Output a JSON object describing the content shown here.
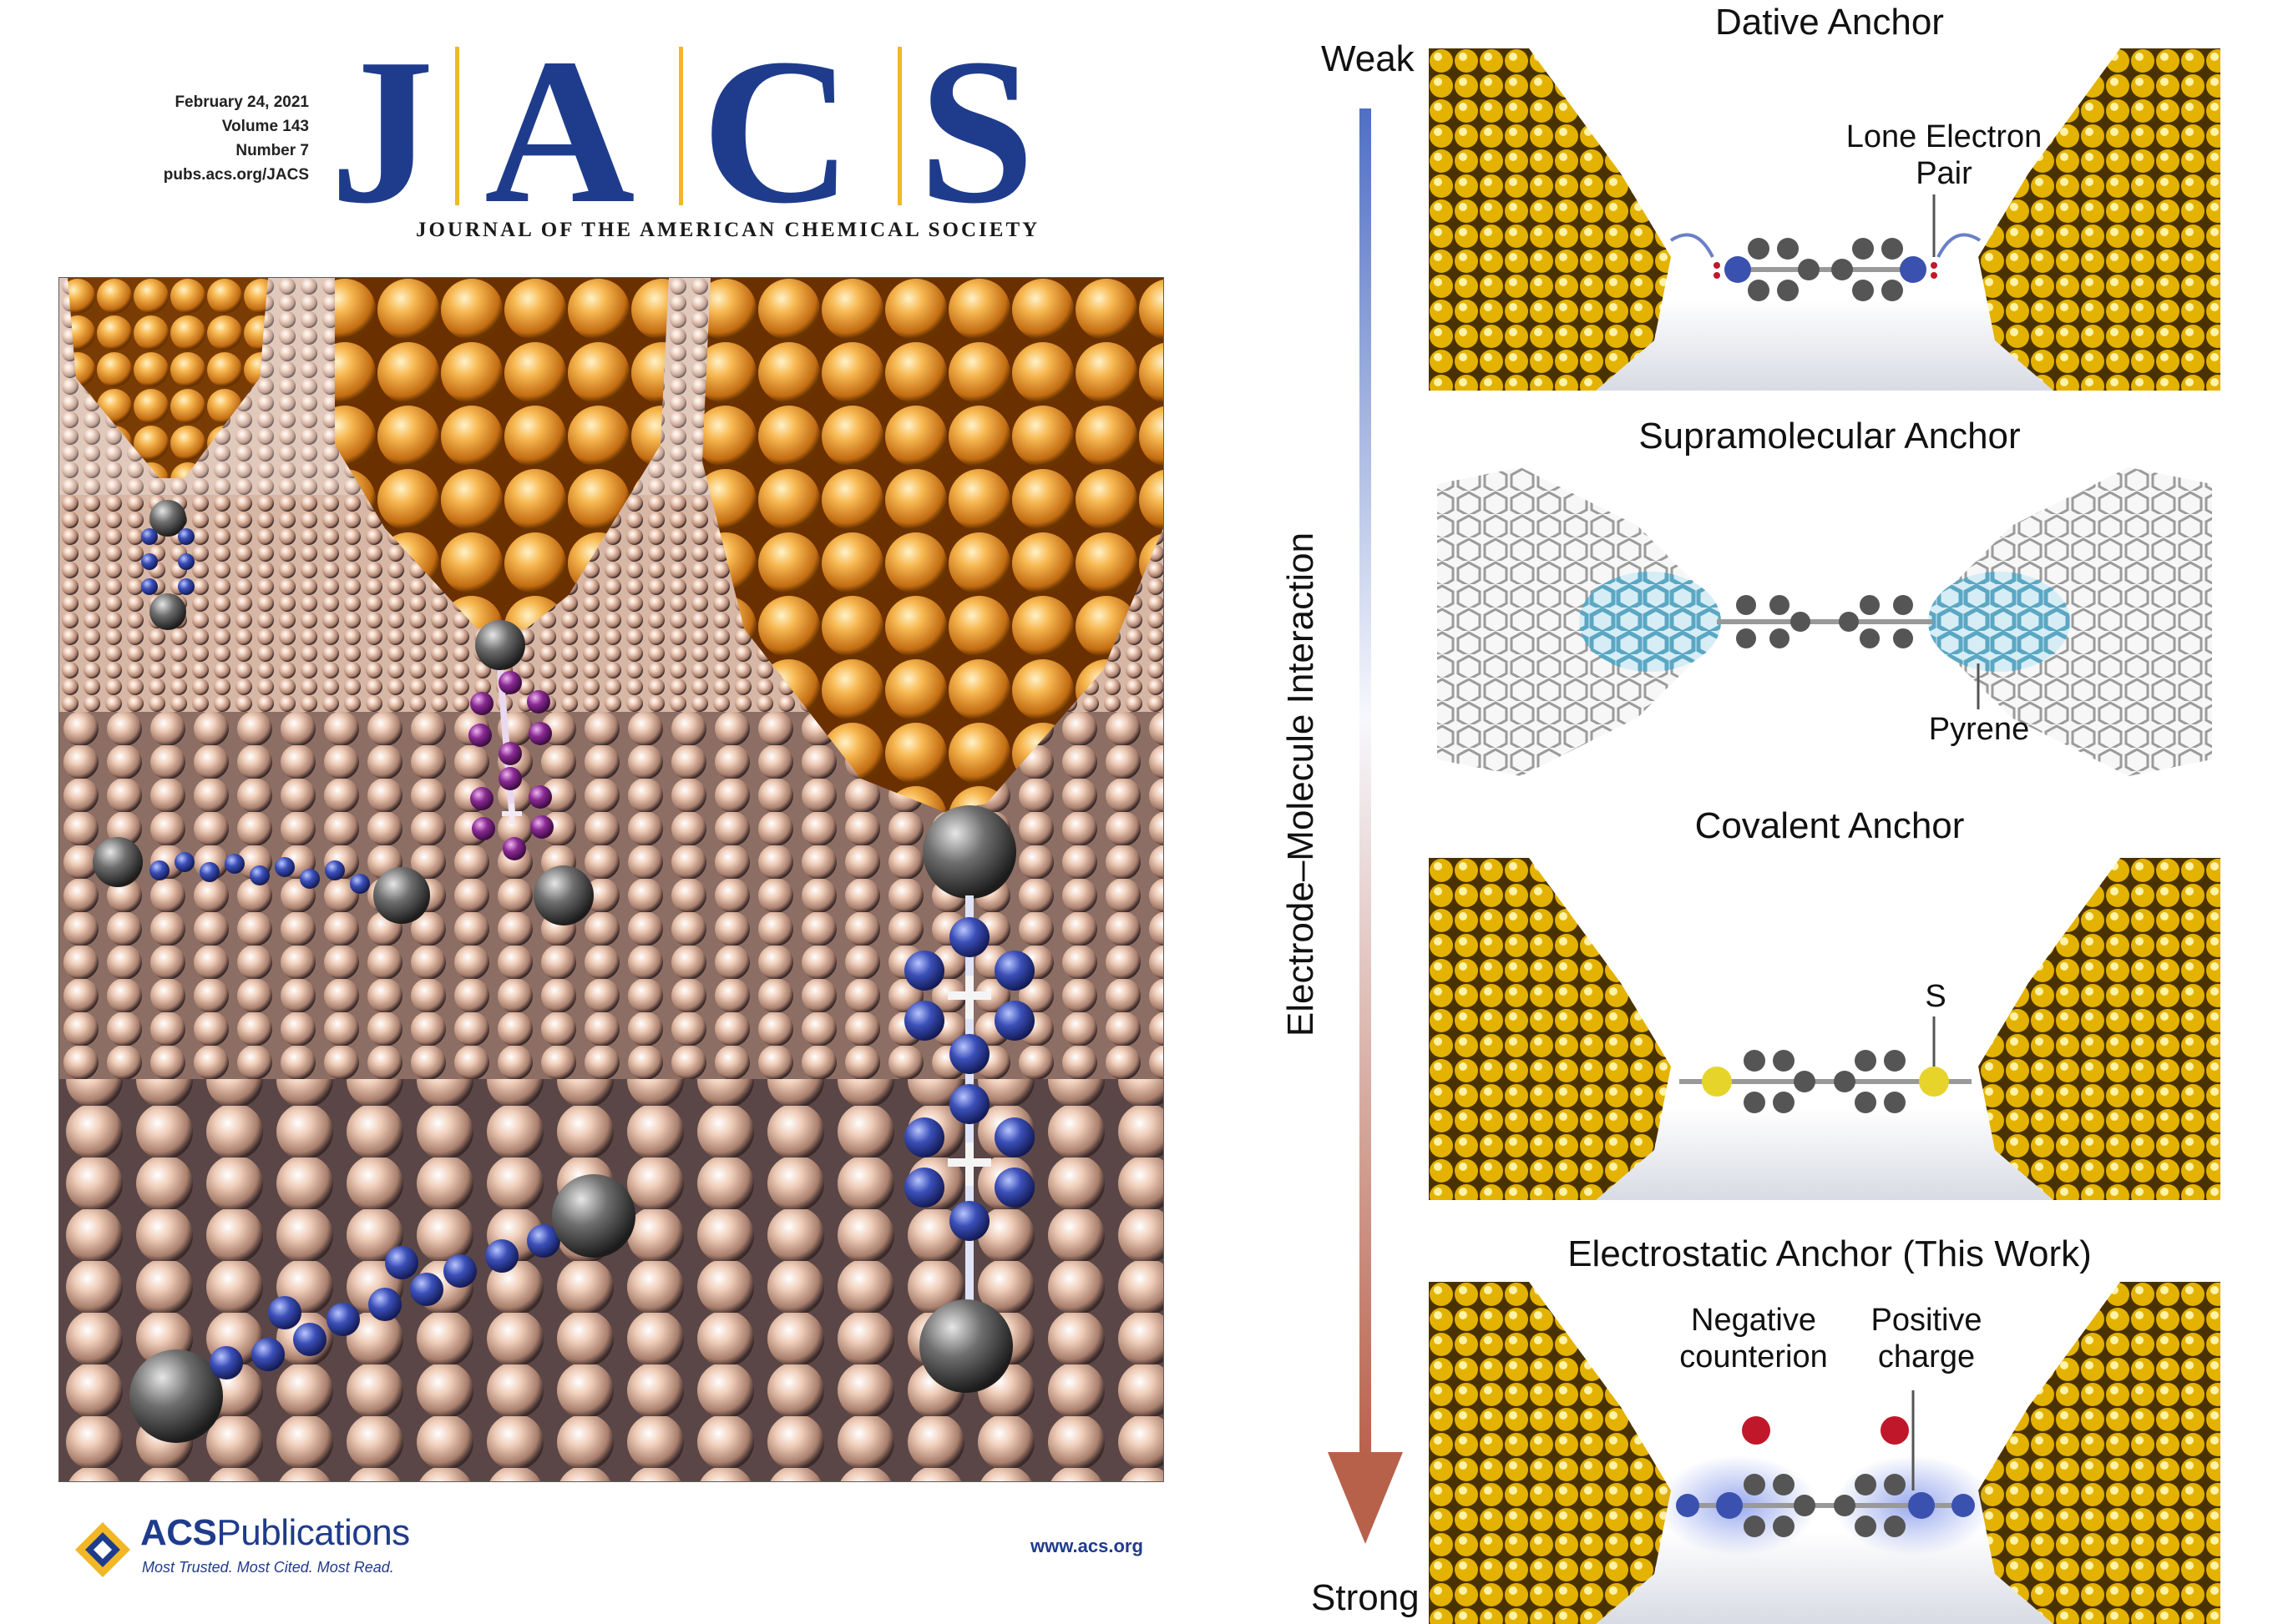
{
  "cover": {
    "issue": {
      "date": "February 24, 2021",
      "volume": "Volume 143",
      "number": "Number 7",
      "url": "pubs.acs.org/JACS"
    },
    "masthead": {
      "letters": [
        "J",
        "A",
        "C",
        "S"
      ]
    },
    "journal_name": "JOURNAL OF THE AMERICAN CHEMICAL SOCIETY",
    "publisher": {
      "name_bold": "ACS",
      "name_rest": "Publications",
      "tagline": "Most Trusted. Most Cited. Most Read.",
      "website": "www.acs.org"
    }
  },
  "diagram": {
    "axis": {
      "label": "Electrode–Molecule Interaction",
      "top_label": "Weak",
      "bottom_label": "Strong"
    },
    "panels": [
      {
        "title": "Dative Anchor",
        "callouts": [
          "Lone Electron\nPair"
        ]
      },
      {
        "title": "Supramolecular Anchor",
        "callouts": [
          "Pyrene"
        ]
      },
      {
        "title": "Covalent Anchor",
        "callouts": [
          "S"
        ]
      },
      {
        "title": "Electrostatic Anchor (This Work)",
        "callouts": [
          "Negative\ncounterion",
          "Positive\ncharge"
        ]
      }
    ]
  },
  "colors": {
    "jacs_blue": "#1f3c8c",
    "masthead_bar": "#f1b727",
    "gold_electrode": "#e4b200",
    "arrow_top": "#4f6fc4",
    "arrow_bottom": "#b8614a",
    "nitrogen": "#3a51b0",
    "sulfur": "#e6d42b",
    "counterion": "#c0182a",
    "pyrene": "#5aa7c4"
  }
}
